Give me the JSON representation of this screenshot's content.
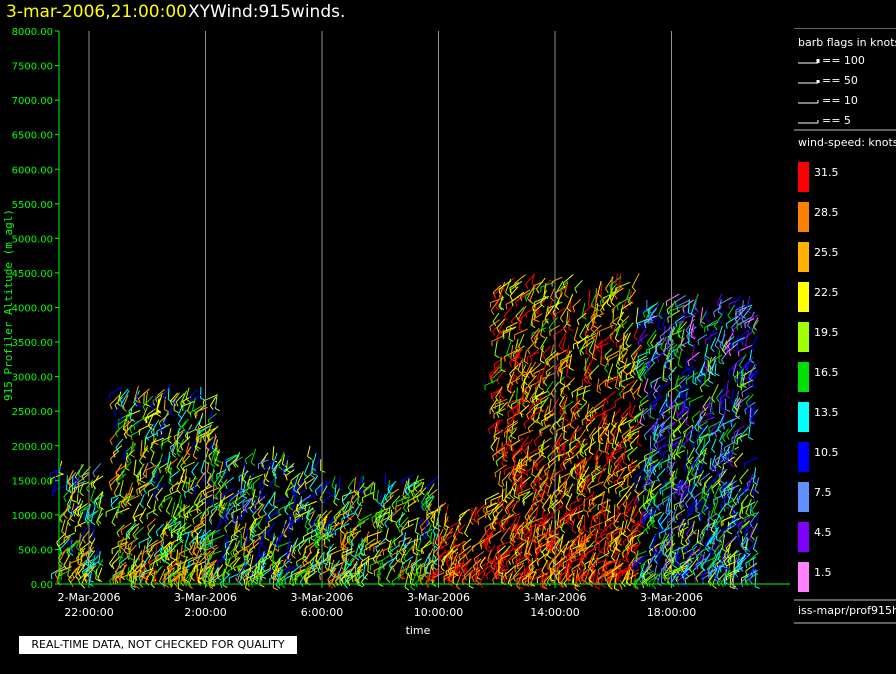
{
  "header": {
    "date_time": "3-mar-2006,21:00:00",
    "product": "XYWind:915winds."
  },
  "notice": "REAL-TIME DATA, NOT CHECKED FOR QUALITY",
  "footer_path": "iss-mapr/prof915h",
  "colors": {
    "background": "#000000",
    "axis": "#00ff00",
    "grid": "#ffffff",
    "title_date": "#ffff00"
  },
  "legend": {
    "barb_title": "barb flags in knots",
    "barb_items": [
      "== 100",
      "== 50",
      "== 10",
      "== 5"
    ],
    "speed_title": "wind-speed: knots",
    "speed_scale": [
      {
        "label": "31.5",
        "color": "#ff0000"
      },
      {
        "label": "28.5",
        "color": "#ff8000"
      },
      {
        "label": "25.5",
        "color": "#ffb000"
      },
      {
        "label": "22.5",
        "color": "#ffff00"
      },
      {
        "label": "19.5",
        "color": "#a0ff00"
      },
      {
        "label": "16.5",
        "color": "#00e000"
      },
      {
        "label": "13.5",
        "color": "#00ffff"
      },
      {
        "label": "10.5",
        "color": "#0000ff"
      },
      {
        "label": "7.5",
        "color": "#6090ff"
      },
      {
        "label": "4.5",
        "color": "#8000ff"
      },
      {
        "label": "1.5",
        "color": "#ff80ff"
      }
    ]
  },
  "chart_data": {
    "type": "scatter",
    "title": "3-mar-2006,21:00:00  XYWind:915winds.",
    "xlabel": "time",
    "ylabel": "915 Profiler Altitude (m agl)",
    "ylim": [
      0,
      8000
    ],
    "y_ticks": [
      "0.00",
      "500.00",
      "1000.00",
      "1500.00",
      "2000.00",
      "2500.00",
      "3000.00",
      "3500.00",
      "4000.00",
      "4500.00",
      "5000.00",
      "5500.00",
      "6000.00",
      "6500.00",
      "7000.00",
      "7500.00",
      "8000.00"
    ],
    "x_ticks": [
      {
        "date": "2-Mar-2006",
        "time": "22:00:00"
      },
      {
        "date": "3-Mar-2006",
        "time": "2:00:00"
      },
      {
        "date": "3-Mar-2006",
        "time": "6:00:00"
      },
      {
        "date": "3-Mar-2006",
        "time": "10:00:00"
      },
      {
        "date": "3-Mar-2006",
        "time": "14:00:00"
      },
      {
        "date": "3-Mar-2006",
        "time": "18:00:00"
      }
    ],
    "xlim": [
      "2-Mar-2006 21:00",
      "3-Mar-2006 21:00"
    ],
    "grid": "vertical",
    "series": [
      {
        "time_start": "2-Mar-2006 21:00",
        "time_end": "2-Mar-2006 22:30",
        "alt_top": 1800,
        "mean_speed_knots": 21
      },
      {
        "time_start": "2-Mar-2006 23:00",
        "time_end": "3-Mar-2006 02:30",
        "alt_top": 2900,
        "mean_speed_knots": 22
      },
      {
        "time_start": "3-Mar-2006 02:30",
        "time_end": "3-Mar-2006 06:00",
        "alt_top": 2000,
        "mean_speed_knots": 19
      },
      {
        "time_start": "3-Mar-2006 06:00",
        "time_end": "3-Mar-2006 10:00",
        "alt_top": 1600,
        "mean_speed_knots": 22
      },
      {
        "time_start": "3-Mar-2006 10:00",
        "time_end": "3-Mar-2006 12:00",
        "alt_top": 1200,
        "mean_speed_knots": 30
      },
      {
        "time_start": "3-Mar-2006 12:00",
        "time_end": "3-Mar-2006 17:00",
        "alt_top": 4500,
        "mean_speed_knots": 29
      },
      {
        "time_start": "3-Mar-2006 17:00",
        "time_end": "3-Mar-2006 21:00",
        "alt_top": 4200,
        "mean_speed_knots": 14
      }
    ]
  }
}
